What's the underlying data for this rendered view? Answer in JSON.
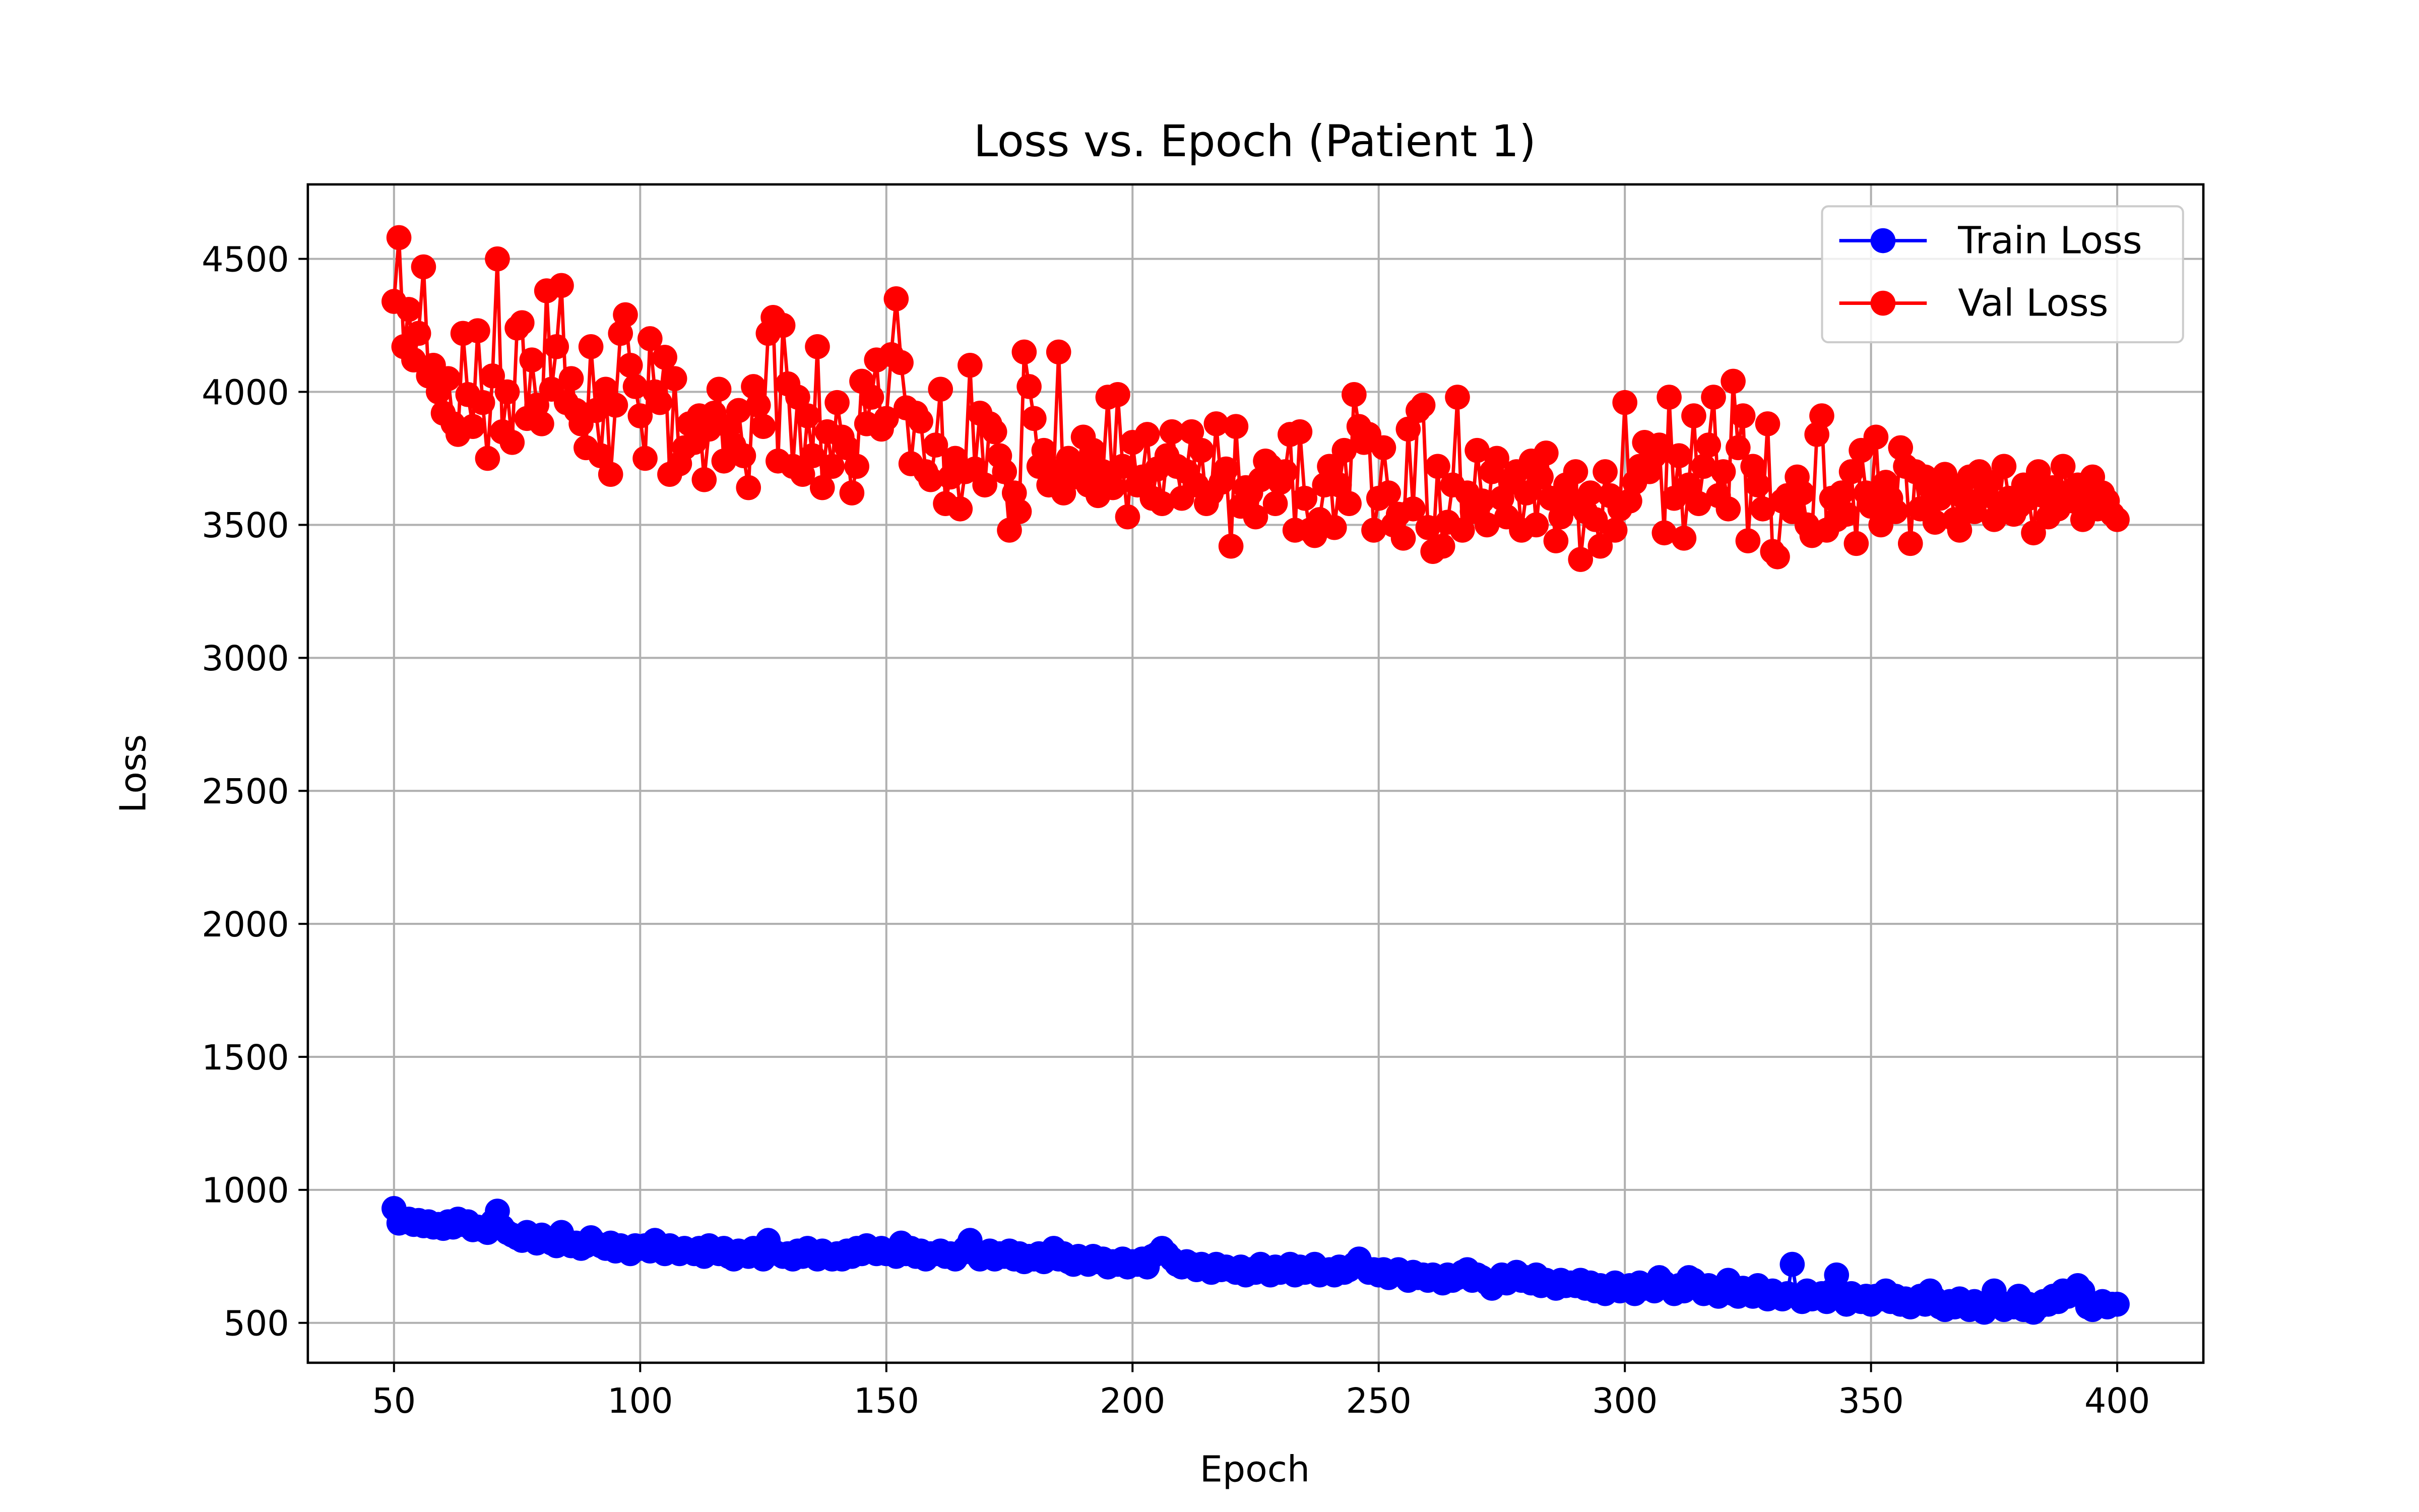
{
  "chart_data": {
    "type": "line",
    "title": "Loss vs. Epoch (Patient 1)",
    "x_label": "Epoch",
    "y_label": "Loss",
    "x": [
      50,
      51,
      52,
      53,
      54,
      55,
      56,
      57,
      58,
      59,
      60,
      61,
      62,
      63,
      64,
      65,
      66,
      67,
      68,
      69,
      70,
      71,
      72,
      73,
      74,
      75,
      76,
      77,
      78,
      79,
      80,
      81,
      82,
      83,
      84,
      85,
      86,
      87,
      88,
      89,
      90,
      91,
      92,
      93,
      94,
      95,
      96,
      97,
      98,
      99,
      100,
      101,
      102,
      103,
      104,
      105,
      106,
      107,
      108,
      109,
      110,
      111,
      112,
      113,
      114,
      115,
      116,
      117,
      118,
      119,
      120,
      121,
      122,
      123,
      124,
      125,
      126,
      127,
      128,
      129,
      130,
      131,
      132,
      133,
      134,
      135,
      136,
      137,
      138,
      139,
      140,
      141,
      142,
      143,
      144,
      145,
      146,
      147,
      148,
      149,
      150,
      151,
      152,
      153,
      154,
      155,
      156,
      157,
      158,
      159,
      160,
      161,
      162,
      163,
      164,
      165,
      166,
      167,
      168,
      169,
      170,
      171,
      172,
      173,
      174,
      175,
      176,
      177,
      178,
      179,
      180,
      181,
      182,
      183,
      184,
      185,
      186,
      187,
      188,
      189,
      190,
      191,
      192,
      193,
      194,
      195,
      196,
      197,
      198,
      199,
      200,
      201,
      202,
      203,
      204,
      205,
      206,
      207,
      208,
      209,
      210,
      211,
      212,
      213,
      214,
      215,
      216,
      217,
      218,
      219,
      220,
      221,
      222,
      223,
      224,
      225,
      226,
      227,
      228,
      229,
      230,
      231,
      232,
      233,
      234,
      235,
      236,
      237,
      238,
      239,
      240,
      241,
      242,
      243,
      244,
      245,
      246,
      247,
      248,
      249,
      250,
      251,
      252,
      253,
      254,
      255,
      256,
      257,
      258,
      259,
      260,
      261,
      262,
      263,
      264,
      265,
      266,
      267,
      268,
      269,
      270,
      271,
      272,
      273,
      274,
      275,
      276,
      277,
      278,
      279,
      280,
      281,
      282,
      283,
      284,
      285,
      286,
      287,
      288,
      289,
      290,
      291,
      292,
      293,
      294,
      295,
      296,
      297,
      298,
      299,
      300,
      301,
      302,
      303,
      304,
      305,
      306,
      307,
      308,
      309,
      310,
      311,
      312,
      313,
      314,
      315,
      316,
      317,
      318,
      319,
      320,
      321,
      322,
      323,
      324,
      325,
      326,
      327,
      328,
      329,
      330,
      331,
      332,
      333,
      334,
      335,
      336,
      337,
      338,
      339,
      340,
      341,
      342,
      343,
      344,
      345,
      346,
      347,
      348,
      349,
      350,
      351,
      352,
      353,
      354,
      355,
      356,
      357,
      358,
      359,
      360,
      361,
      362,
      363,
      364,
      365,
      366,
      367,
      368,
      369,
      370,
      371,
      372,
      373,
      374,
      375,
      376,
      377,
      378,
      379,
      380,
      381,
      382,
      383,
      384,
      385,
      386,
      387,
      388,
      389,
      390,
      391,
      392,
      393,
      394,
      395,
      396,
      397,
      398,
      399,
      400
    ],
    "series": [
      {
        "name": "Train Loss",
        "color": "#0000ff",
        "values": [
          930,
          875,
          880,
          890,
          870,
          885,
          865,
          880,
          860,
          870,
          855,
          880,
          860,
          890,
          870,
          880,
          850,
          860,
          850,
          840,
          880,
          920,
          860,
          840,
          830,
          820,
          810,
          840,
          820,
          800,
          830,
          810,
          800,
          790,
          840,
          810,
          790,
          800,
          780,
          790,
          820,
          800,
          790,
          780,
          800,
          770,
          790,
          780,
          760,
          790,
          780,
          790,
          770,
          810,
          780,
          760,
          790,
          770,
          760,
          780,
          770,
          760,
          780,
          750,
          790,
          770,
          760,
          780,
          750,
          740,
          770,
          760,
          750,
          780,
          760,
          740,
          810,
          770,
          760,
          750,
          760,
          740,
          770,
          750,
          780,
          760,
          740,
          770,
          750,
          740,
          760,
          740,
          770,
          750,
          780,
          760,
          790,
          770,
          760,
          780,
          760,
          770,
          750,
          800,
          760,
          780,
          750,
          770,
          740,
          760,
          760,
          770,
          750,
          760,
          740,
          760,
          780,
          810,
          760,
          740,
          750,
          770,
          740,
          760,
          750,
          770,
          740,
          760,
          730,
          750,
          740,
          760,
          730,
          750,
          780,
          740,
          760,
          730,
          720,
          750,
          740,
          720,
          750,
          730,
          740,
          710,
          730,
          720,
          740,
          710,
          730,
          720,
          740,
          710,
          750,
          760,
          780,
          760,
          740,
          720,
          710,
          730,
          720,
          700,
          720,
          710,
          690,
          720,
          700,
          710,
          700,
          690,
          710,
          680,
          700,
          690,
          720,
          700,
          680,
          710,
          690,
          700,
          720,
          680,
          710,
          690,
          700,
          720,
          680,
          690,
          700,
          680,
          710,
          690,
          700,
          720,
          740,
          710,
          690,
          700,
          680,
          700,
          670,
          690,
          700,
          680,
          660,
          690,
          670,
          680,
          660,
          680,
          670,
          650,
          680,
          660,
          670,
          690,
          700,
          660,
          680,
          670,
          650,
          630,
          660,
          680,
          650,
          670,
          690,
          660,
          670,
          650,
          680,
          640,
          660,
          650,
          630,
          660,
          640,
          650,
          640,
          660,
          630,
          650,
          620,
          640,
          610,
          630,
          650,
          620,
          630,
          640,
          610,
          650,
          630,
          640,
          620,
          670,
          650,
          630,
          610,
          640,
          620,
          670,
          660,
          630,
          610,
          640,
          620,
          600,
          630,
          660,
          610,
          600,
          630,
          620,
          600,
          640,
          610,
          590,
          620,
          600,
          590,
          610,
          720,
          600,
          580,
          620,
          590,
          600,
          610,
          580,
          620,
          680,
          600,
          570,
          610,
          590,
          580,
          600,
          570,
          600,
          590,
          620,
          580,
          600,
          570,
          590,
          560,
          580,
          600,
          570,
          620,
          590,
          560,
          550,
          580,
          560,
          590,
          570,
          550,
          580,
          560,
          540,
          570,
          620,
          580,
          550,
          570,
          560,
          600,
          550,
          570,
          540,
          560,
          580,
          570,
          600,
          580,
          620,
          600,
          610,
          640,
          620,
          560,
          550,
          570,
          580,
          560,
          570,
          570
        ]
      },
      {
        "name": "Val Loss",
        "color": "#ff0000",
        "values": [
          4340,
          4580,
          4170,
          4310,
          4120,
          4220,
          4470,
          4060,
          4100,
          4000,
          3920,
          4050,
          3880,
          3840,
          4220,
          3990,
          3870,
          4230,
          3960,
          3750,
          4060,
          4500,
          3850,
          4000,
          3810,
          4240,
          4260,
          3900,
          4120,
          3950,
          3880,
          4380,
          4010,
          4170,
          4400,
          3960,
          4050,
          3930,
          3880,
          3790,
          4170,
          3930,
          3760,
          4010,
          3690,
          3950,
          4220,
          4290,
          4100,
          4020,
          3910,
          3750,
          4200,
          4000,
          3960,
          4130,
          3690,
          4050,
          3730,
          3790,
          3880,
          3810,
          3910,
          3670,
          3860,
          3920,
          4010,
          3740,
          3870,
          3800,
          3930,
          3760,
          3640,
          4020,
          3950,
          3870,
          4220,
          4280,
          3740,
          4250,
          4030,
          3720,
          3980,
          3690,
          3910,
          3760,
          4170,
          3640,
          3850,
          3720,
          3960,
          3830,
          3790,
          3620,
          3720,
          4040,
          3880,
          3980,
          4120,
          3860,
          3900,
          4140,
          4350,
          4110,
          3940,
          3730,
          3920,
          3890,
          3700,
          3670,
          3800,
          4010,
          3580,
          3680,
          3750,
          3560,
          3700,
          4100,
          3710,
          3920,
          3650,
          3880,
          3850,
          3760,
          3700,
          3480,
          3620,
          3550,
          4150,
          4020,
          3900,
          3720,
          3780,
          3650,
          3700,
          4150,
          3620,
          3750,
          3680,
          3720,
          3830,
          3650,
          3780,
          3610,
          3700,
          3980,
          3640,
          3990,
          3720,
          3530,
          3810,
          3650,
          3680,
          3840,
          3600,
          3710,
          3580,
          3760,
          3850,
          3720,
          3600,
          3700,
          3850,
          3650,
          3780,
          3580,
          3620,
          3880,
          3660,
          3710,
          3420,
          3870,
          3570,
          3640,
          3620,
          3530,
          3670,
          3740,
          3720,
          3580,
          3660,
          3700,
          3840,
          3480,
          3850,
          3600,
          3480,
          3460,
          3520,
          3650,
          3720,
          3490,
          3650,
          3780,
          3580,
          3990,
          3870,
          3810,
          3840,
          3480,
          3600,
          3790,
          3620,
          3500,
          3540,
          3450,
          3860,
          3560,
          3930,
          3950,
          3490,
          3400,
          3720,
          3420,
          3510,
          3650,
          3980,
          3480,
          3620,
          3550,
          3780,
          3590,
          3500,
          3700,
          3750,
          3600,
          3530,
          3660,
          3700,
          3480,
          3620,
          3740,
          3500,
          3680,
          3770,
          3600,
          3440,
          3530,
          3650,
          3580,
          3700,
          3370,
          3550,
          3620,
          3520,
          3420,
          3700,
          3610,
          3480,
          3560,
          3960,
          3590,
          3660,
          3720,
          3810,
          3700,
          3760,
          3800,
          3470,
          3980,
          3600,
          3760,
          3450,
          3650,
          3910,
          3580,
          3720,
          3800,
          3980,
          3610,
          3700,
          3560,
          4040,
          3790,
          3910,
          3440,
          3720,
          3650,
          3560,
          3880,
          3400,
          3380,
          3590,
          3610,
          3550,
          3680,
          3620,
          3500,
          3460,
          3840,
          3910,
          3480,
          3600,
          3520,
          3620,
          3540,
          3700,
          3430,
          3780,
          3620,
          3570,
          3830,
          3500,
          3660,
          3600,
          3550,
          3790,
          3720,
          3430,
          3700,
          3560,
          3680,
          3640,
          3510,
          3600,
          3690,
          3650,
          3520,
          3480,
          3600,
          3680,
          3550,
          3700,
          3610,
          3660,
          3520,
          3580,
          3720,
          3600,
          3540,
          3570,
          3650,
          3600,
          3470,
          3700,
          3610,
          3530,
          3640,
          3560,
          3720,
          3620,
          3590,
          3650,
          3520,
          3600,
          3680,
          3560,
          3620,
          3590,
          3540,
          3520
        ]
      }
    ],
    "xlim": [
      32.5,
      417.5
    ],
    "ylim": [
      350,
      4780
    ],
    "xticks": [
      50,
      100,
      150,
      200,
      250,
      300,
      350,
      400
    ],
    "yticks": [
      500,
      1000,
      1500,
      2000,
      2500,
      3000,
      3500,
      4000,
      4500
    ],
    "grid": true,
    "legend": "upper right"
  }
}
